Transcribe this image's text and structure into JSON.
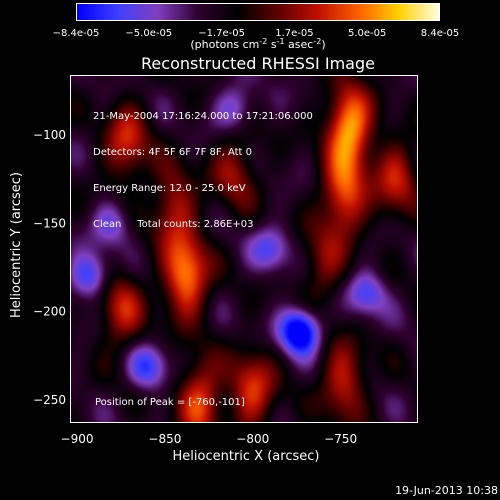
{
  "colorbar": {
    "tick_labels": [
      "-8.4e-05",
      "-5.0e-05",
      "-1.7e-05",
      "1.7e-05",
      "5.0e-05",
      "8.4e-05"
    ],
    "unit_label": "(photons cm-2 s-1 asec-2)",
    "range": [
      -8.4e-05,
      8.4e-05
    ],
    "colors": [
      "#0000ff",
      "#4040ff",
      "#8040c0",
      "#300030",
      "#000000",
      "#600000",
      "#c01000",
      "#ff6000",
      "#ffd000",
      "#ffffe0"
    ]
  },
  "chart_data": {
    "type": "heatmap",
    "title": "Reconstructed RHESSI Image",
    "xlabel": "Heliocentric X (arcsec)",
    "ylabel": "Heliocentric Y (arcsec)",
    "xlim": [
      -904,
      -706
    ],
    "ylim": [
      -263,
      -66
    ],
    "x_ticks": [
      -900,
      -850,
      -800,
      -750
    ],
    "y_ticks": [
      -100,
      -150,
      -200,
      -250
    ],
    "x_tick_labels": [
      "−900",
      "−850",
      "−800",
      "−750"
    ],
    "y_tick_labels": [
      "−100",
      "−150",
      "−200",
      "−250"
    ],
    "annotations": [
      "21-May-2004 17:16:24.000 to 17:21:06.000",
      "Detectors: 4F 5F 6F 7F 8F, Att 0",
      "Energy Range: 12.0 - 25.0 keV",
      "Clean     Total counts: 2.86E+03"
    ],
    "peak_label": "Position of Peak = [-760,-101]",
    "peak_position": [
      -760,
      -101
    ],
    "sources": [
      {
        "x": -745,
        "y": -95,
        "v": 1.0
      },
      {
        "x": -748,
        "y": -135,
        "v": 0.75
      },
      {
        "x": -838,
        "y": -180,
        "v": 0.9
      },
      {
        "x": -845,
        "y": -140,
        "v": 0.55
      },
      {
        "x": -872,
        "y": -105,
        "v": 0.6
      },
      {
        "x": -875,
        "y": -200,
        "v": 0.55
      },
      {
        "x": -830,
        "y": -250,
        "v": 0.7
      },
      {
        "x": -800,
        "y": -245,
        "v": 0.65
      },
      {
        "x": -748,
        "y": -240,
        "v": 0.6
      },
      {
        "x": -718,
        "y": -125,
        "v": 0.55
      },
      {
        "x": -760,
        "y": -175,
        "v": 0.4
      },
      {
        "x": -810,
        "y": -120,
        "v": 0.45
      },
      {
        "x": -773,
        "y": -211,
        "v": -1.0
      },
      {
        "x": -893,
        "y": -180,
        "v": -0.6
      },
      {
        "x": -860,
        "y": -232,
        "v": -0.55
      },
      {
        "x": -735,
        "y": -190,
        "v": -0.5
      },
      {
        "x": -810,
        "y": -85,
        "v": -0.45
      },
      {
        "x": -880,
        "y": -150,
        "v": -0.4
      },
      {
        "x": -790,
        "y": -165,
        "v": -0.45
      }
    ]
  },
  "footer": {
    "timestamp": "19-Jun-2013 10:38"
  }
}
